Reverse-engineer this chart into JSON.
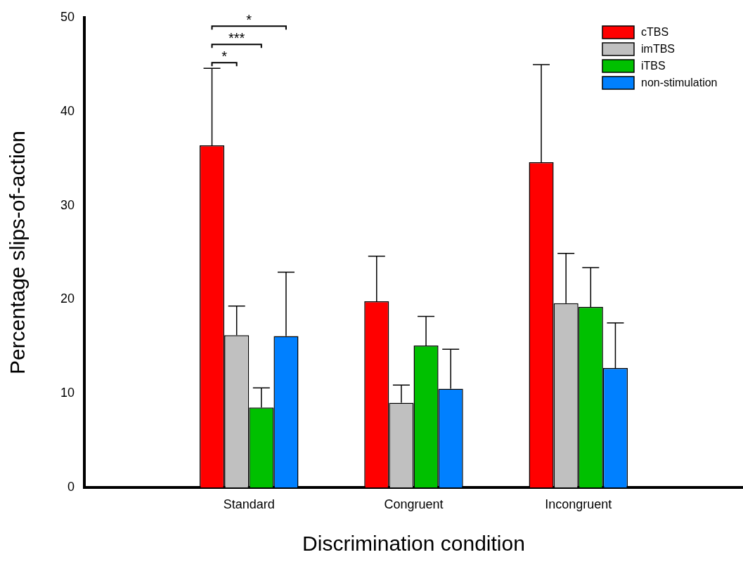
{
  "chart_data": {
    "type": "bar",
    "xlabel": "Discrimination condition",
    "ylabel": "Percentage slips-of-action",
    "categories": [
      "Standard",
      "Congruent",
      "Incongruent"
    ],
    "series": [
      {
        "name": "cTBS",
        "color": "#ff0000",
        "values": [
          36.4,
          19.8,
          34.6
        ],
        "errors": [
          [
            36.4,
            44.6
          ],
          [
            19.8,
            24.6
          ],
          [
            34.6,
            45.0
          ]
        ]
      },
      {
        "name": "imTBS",
        "color": "#c0c0c0",
        "values": [
          16.2,
          9.0,
          19.6
        ],
        "errors": [
          [
            16.2,
            19.3
          ],
          [
            9.0,
            10.9
          ],
          [
            19.6,
            24.9
          ]
        ]
      },
      {
        "name": "iTBS",
        "color": "#00c000",
        "values": [
          8.5,
          15.1,
          19.2
        ],
        "errors": [
          [
            8.5,
            10.6
          ],
          [
            15.1,
            18.2
          ],
          [
            19.2,
            23.4
          ]
        ]
      },
      {
        "name": "non-stimulation",
        "color": "#0080ff",
        "values": [
          16.1,
          10.5,
          12.7
        ],
        "errors": [
          [
            16.1,
            22.9
          ],
          [
            10.5,
            14.7
          ],
          [
            12.7,
            17.5
          ]
        ]
      }
    ],
    "ylim": [
      0,
      50
    ],
    "yticks": [
      0,
      10,
      20,
      30,
      40,
      50
    ],
    "grid": false,
    "legend": "top right",
    "annotations": [
      "*",
      "***",
      "*"
    ]
  }
}
